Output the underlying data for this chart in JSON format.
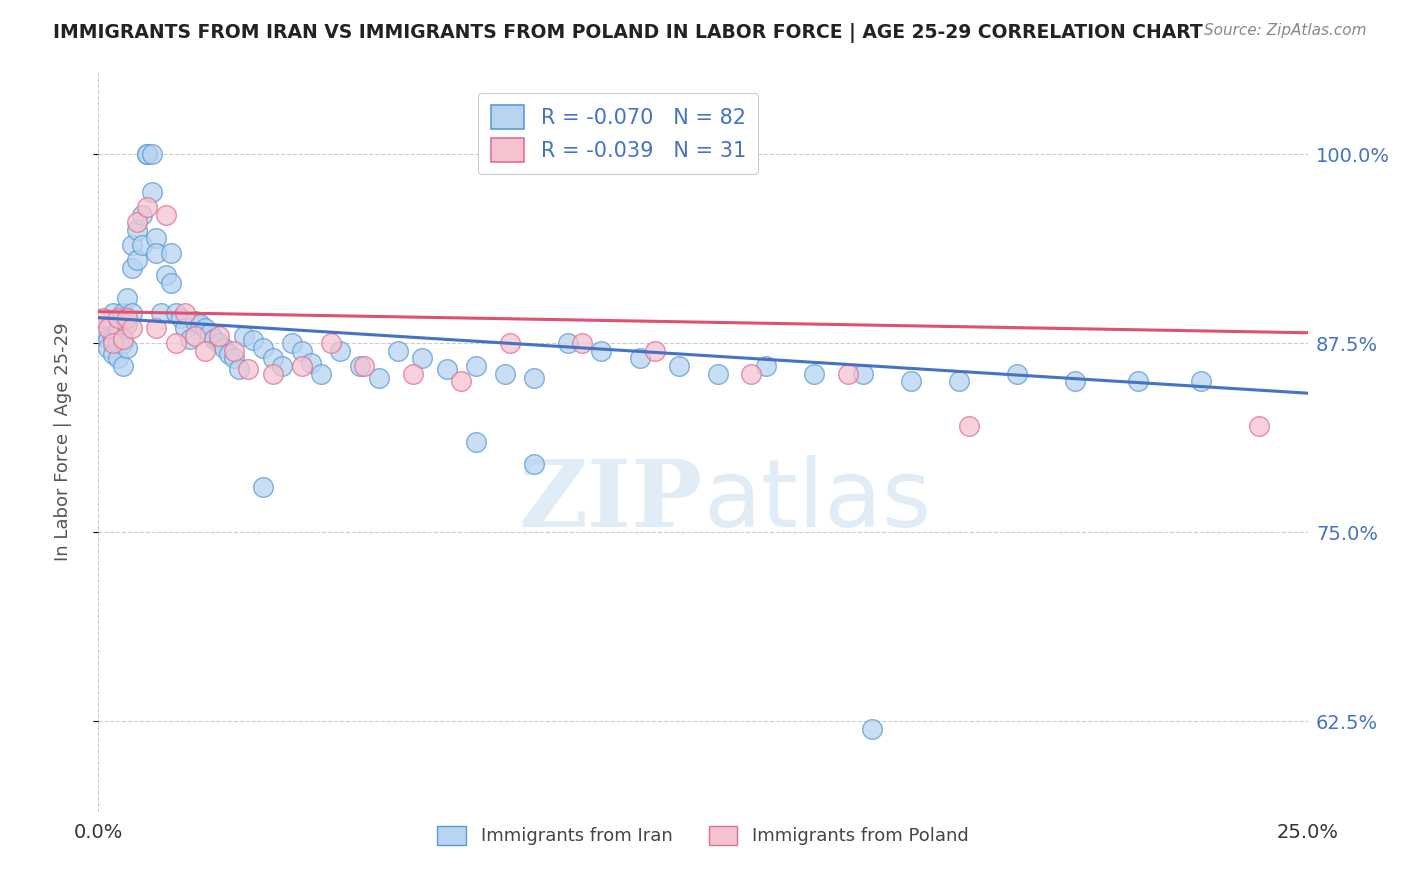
{
  "title": "IMMIGRANTS FROM IRAN VS IMMIGRANTS FROM POLAND IN LABOR FORCE | AGE 25-29 CORRELATION CHART",
  "source": "Source: ZipAtlas.com",
  "ylabel": "In Labor Force | Age 25-29",
  "ytick_labels": [
    "62.5%",
    "75.0%",
    "87.5%",
    "100.0%"
  ],
  "ytick_values": [
    0.625,
    0.75,
    0.875,
    1.0
  ],
  "xlim": [
    0.0,
    0.25
  ],
  "ylim": [
    0.565,
    1.055
  ],
  "iran_R": -0.07,
  "iran_N": 82,
  "poland_R": -0.039,
  "poland_N": 31,
  "iran_color": "#b8d4f0",
  "iran_edge_color": "#5b9bd5",
  "poland_color": "#f5c2d0",
  "poland_edge_color": "#e07090",
  "iran_line_color": "#4472c4",
  "poland_line_color": "#e05070",
  "watermark_color": "#c8dff0",
  "iran_trend_y0": 0.892,
  "iran_trend_y1": 0.842,
  "poland_trend_y0": 0.896,
  "poland_trend_y1": 0.882,
  "iran_scatter_x": [
    0.001,
    0.002,
    0.002,
    0.003,
    0.003,
    0.003,
    0.004,
    0.004,
    0.004,
    0.005,
    0.005,
    0.005,
    0.006,
    0.006,
    0.006,
    0.007,
    0.007,
    0.007,
    0.008,
    0.008,
    0.009,
    0.009,
    0.01,
    0.01,
    0.011,
    0.011,
    0.012,
    0.012,
    0.013,
    0.014,
    0.015,
    0.015,
    0.016,
    0.017,
    0.018,
    0.019,
    0.02,
    0.021,
    0.022,
    0.023,
    0.024,
    0.025,
    0.026,
    0.027,
    0.028,
    0.029,
    0.03,
    0.032,
    0.034,
    0.036,
    0.038,
    0.04,
    0.042,
    0.044,
    0.046,
    0.05,
    0.054,
    0.058,
    0.062,
    0.067,
    0.072,
    0.078,
    0.084,
    0.09,
    0.097,
    0.104,
    0.112,
    0.12,
    0.128,
    0.138,
    0.148,
    0.158,
    0.168,
    0.178,
    0.19,
    0.202,
    0.215,
    0.228,
    0.078,
    0.09,
    0.034,
    0.16
  ],
  "iran_scatter_y": [
    0.885,
    0.878,
    0.872,
    0.895,
    0.878,
    0.868,
    0.885,
    0.875,
    0.865,
    0.895,
    0.875,
    0.86,
    0.905,
    0.888,
    0.872,
    0.94,
    0.925,
    0.895,
    0.95,
    0.93,
    0.96,
    0.94,
    1.0,
    1.0,
    1.0,
    0.975,
    0.945,
    0.935,
    0.895,
    0.92,
    0.935,
    0.915,
    0.895,
    0.892,
    0.885,
    0.878,
    0.89,
    0.888,
    0.885,
    0.882,
    0.878,
    0.875,
    0.872,
    0.868,
    0.865,
    0.858,
    0.88,
    0.877,
    0.872,
    0.865,
    0.86,
    0.875,
    0.87,
    0.862,
    0.855,
    0.87,
    0.86,
    0.852,
    0.87,
    0.865,
    0.858,
    0.86,
    0.855,
    0.852,
    0.875,
    0.87,
    0.865,
    0.86,
    0.855,
    0.86,
    0.855,
    0.855,
    0.85,
    0.85,
    0.855,
    0.85,
    0.85,
    0.85,
    0.81,
    0.795,
    0.78,
    0.62
  ],
  "poland_scatter_x": [
    0.001,
    0.002,
    0.003,
    0.004,
    0.005,
    0.006,
    0.007,
    0.008,
    0.01,
    0.012,
    0.014,
    0.016,
    0.018,
    0.02,
    0.022,
    0.025,
    0.028,
    0.031,
    0.036,
    0.042,
    0.048,
    0.055,
    0.065,
    0.075,
    0.085,
    0.1,
    0.115,
    0.135,
    0.155,
    0.18,
    0.24
  ],
  "poland_scatter_y": [
    0.892,
    0.885,
    0.875,
    0.892,
    0.878,
    0.892,
    0.885,
    0.955,
    0.965,
    0.885,
    0.96,
    0.875,
    0.895,
    0.88,
    0.87,
    0.88,
    0.87,
    0.858,
    0.855,
    0.86,
    0.875,
    0.86,
    0.855,
    0.85,
    0.875,
    0.875,
    0.87,
    0.855,
    0.855,
    0.82,
    0.82
  ]
}
